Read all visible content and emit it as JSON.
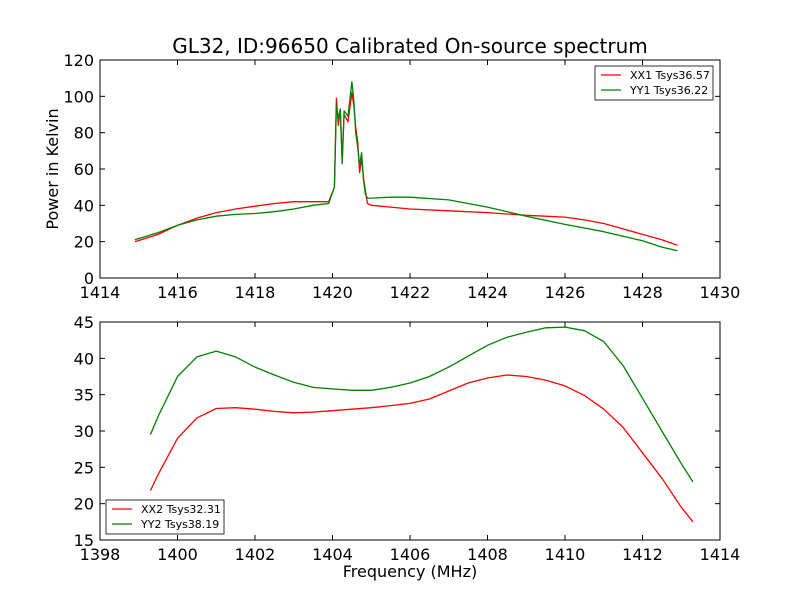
{
  "title": "GL32, ID:96650 Calibrated On-source spectrum",
  "colors": {
    "red": "#ff0000",
    "green": "#008000"
  },
  "chart_data": [
    {
      "type": "line",
      "title": "GL32, ID:96650 Calibrated On-source spectrum",
      "xlabel": "",
      "ylabel": "Power in Kelvin",
      "xlim": [
        1414,
        1430
      ],
      "ylim": [
        0,
        120
      ],
      "xticks": [
        1414,
        1416,
        1418,
        1420,
        1422,
        1424,
        1426,
        1428,
        1430
      ],
      "yticks": [
        0,
        20,
        40,
        60,
        80,
        100,
        120
      ],
      "legend_position": "top-right",
      "series": [
        {
          "name": "XX1 Tsys36.57",
          "color": "#ff0000",
          "x": [
            1414.9,
            1415.5,
            1416.0,
            1416.5,
            1417.0,
            1417.5,
            1418.0,
            1418.5,
            1419.0,
            1419.5,
            1419.9,
            1420.05,
            1420.1,
            1420.15,
            1420.2,
            1420.25,
            1420.3,
            1420.4,
            1420.5,
            1420.55,
            1420.6,
            1420.65,
            1420.7,
            1420.75,
            1420.8,
            1420.85,
            1420.9,
            1421.0,
            1421.5,
            1422.0,
            1423.0,
            1424.0,
            1425.0,
            1426.0,
            1426.5,
            1427.0,
            1427.5,
            1428.0,
            1428.5,
            1428.9
          ],
          "values": [
            20,
            24,
            29,
            33,
            36,
            38,
            39.5,
            41,
            42,
            42,
            42,
            50,
            99,
            84,
            93,
            65,
            90,
            86,
            102,
            95,
            83,
            75,
            58,
            66,
            55,
            48,
            41,
            40,
            39,
            38,
            37,
            36,
            34.5,
            33.5,
            32,
            30,
            27,
            24,
            21,
            18
          ]
        },
        {
          "name": "YY1 Tsys36.22",
          "color": "#008000",
          "x": [
            1414.9,
            1415.5,
            1416.0,
            1416.5,
            1417.0,
            1417.5,
            1418.0,
            1418.5,
            1419.0,
            1419.5,
            1419.9,
            1420.05,
            1420.1,
            1420.15,
            1420.2,
            1420.25,
            1420.3,
            1420.4,
            1420.5,
            1420.55,
            1420.6,
            1420.65,
            1420.7,
            1420.75,
            1420.8,
            1420.85,
            1420.9,
            1421.0,
            1421.5,
            1422.0,
            1423.0,
            1424.0,
            1425.0,
            1426.0,
            1426.5,
            1427.0,
            1427.5,
            1428.0,
            1428.5,
            1428.9
          ],
          "values": [
            21,
            25,
            29,
            32,
            34,
            35,
            35.5,
            36.5,
            38,
            40,
            41,
            50,
            95,
            88,
            93,
            63,
            92,
            89,
            108,
            98,
            80,
            72,
            62,
            69,
            54,
            46,
            44,
            44,
            44.5,
            44.5,
            43,
            39,
            34,
            29.5,
            27.5,
            25.5,
            23,
            20.5,
            17,
            15
          ]
        }
      ]
    },
    {
      "type": "line",
      "title": "",
      "xlabel": "Frequency (MHz)",
      "ylabel": "",
      "xlim": [
        1398,
        1414
      ],
      "ylim": [
        15,
        45
      ],
      "xticks": [
        1398,
        1400,
        1402,
        1404,
        1406,
        1408,
        1410,
        1412,
        1414
      ],
      "yticks": [
        15,
        20,
        25,
        30,
        35,
        40,
        45
      ],
      "legend_position": "bottom-left",
      "series": [
        {
          "name": "XX2 Tsys32.31",
          "color": "#ff0000",
          "x": [
            1399.3,
            1399.5,
            1400.0,
            1400.5,
            1401.0,
            1401.5,
            1402.0,
            1402.5,
            1403.0,
            1403.5,
            1404.0,
            1404.5,
            1405.0,
            1405.5,
            1406.0,
            1406.5,
            1407.0,
            1407.5,
            1408.0,
            1408.5,
            1409.0,
            1409.5,
            1410.0,
            1410.5,
            1411.0,
            1411.5,
            1412.0,
            1412.5,
            1413.0,
            1413.3
          ],
          "values": [
            21.8,
            24,
            29,
            31.8,
            33.1,
            33.2,
            33,
            32.7,
            32.5,
            32.6,
            32.8,
            33,
            33.2,
            33.5,
            33.8,
            34.4,
            35.5,
            36.6,
            37.3,
            37.7,
            37.5,
            37,
            36.2,
            34.9,
            33,
            30.5,
            27,
            23.5,
            19.5,
            17.5
          ]
        },
        {
          "name": "YY2 Tsys38.19",
          "color": "#008000",
          "x": [
            1399.3,
            1399.5,
            1400.0,
            1400.5,
            1401.0,
            1401.5,
            1402.0,
            1402.5,
            1403.0,
            1403.5,
            1404.0,
            1404.5,
            1405.0,
            1405.5,
            1406.0,
            1406.5,
            1407.0,
            1407.5,
            1408.0,
            1408.5,
            1409.0,
            1409.5,
            1410.0,
            1410.5,
            1411.0,
            1411.5,
            1412.0,
            1412.5,
            1413.0,
            1413.3
          ],
          "values": [
            29.5,
            32,
            37.5,
            40.2,
            41,
            40.2,
            38.8,
            37.7,
            36.7,
            36,
            35.8,
            35.6,
            35.6,
            36,
            36.6,
            37.5,
            38.8,
            40.3,
            41.8,
            42.9,
            43.6,
            44.2,
            44.3,
            43.8,
            42.3,
            39,
            34.5,
            30,
            25.5,
            23
          ]
        }
      ]
    }
  ]
}
